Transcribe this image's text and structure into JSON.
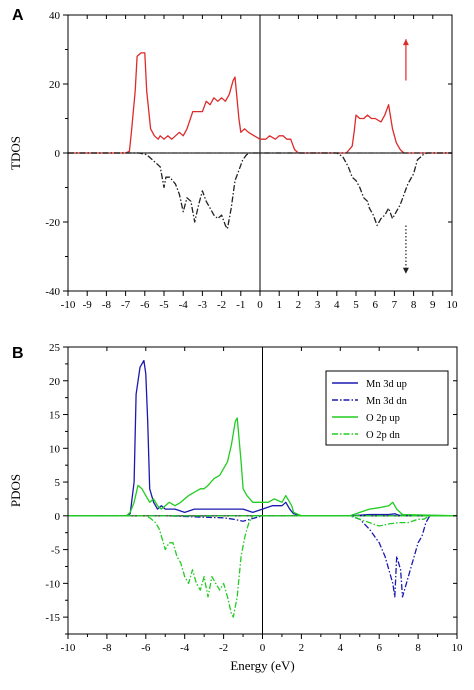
{
  "chart_data": [
    {
      "panel": "A",
      "type": "line",
      "xlabel": "",
      "ylabel": "TDOS",
      "xlim": [
        -10,
        10
      ],
      "ylim": [
        -40,
        40
      ],
      "xticks": [
        -10,
        -9,
        -8,
        -7,
        -6,
        -5,
        -4,
        -3,
        -2,
        -1,
        0,
        1,
        2,
        3,
        4,
        5,
        6,
        7,
        8,
        9,
        10
      ],
      "yticks": [
        -40,
        -20,
        0,
        20,
        40
      ],
      "zero_lines": true,
      "legend": null,
      "annotations": [
        {
          "type": "arrow",
          "direction": "up",
          "color": "#dd2a2a",
          "style": "solid",
          "x": 7.6,
          "y_from": 21,
          "y_to": 33
        },
        {
          "type": "arrow",
          "direction": "down",
          "color": "#222222",
          "style": "dotted",
          "x": 7.6,
          "y_from": -21,
          "y_to": -35
        }
      ],
      "series": [
        {
          "color": "#dd2a2a",
          "style": "solid",
          "x": [
            -10,
            -7,
            -6.8,
            -6.7,
            -6.5,
            -6.4,
            -6.2,
            -6.0,
            -5.9,
            -5.7,
            -5.5,
            -5.3,
            -5.2,
            -5.0,
            -4.8,
            -4.6,
            -4.4,
            -4.2,
            -4.0,
            -3.8,
            -3.5,
            -3.2,
            -3.0,
            -2.8,
            -2.6,
            -2.4,
            -2.2,
            -2.0,
            -1.8,
            -1.6,
            -1.4,
            -1.3,
            -1.1,
            -1.0,
            -0.8,
            -0.6,
            -0.3,
            0.0,
            0.3,
            0.5,
            0.8,
            1.0,
            1.2,
            1.4,
            1.6,
            1.8,
            2.0,
            2.5,
            3.0,
            3.5,
            4.0,
            4.5,
            4.8,
            4.9,
            5.0,
            5.2,
            5.4,
            5.6,
            5.8,
            6.0,
            6.3,
            6.5,
            6.7,
            6.9,
            7.1,
            7.3,
            7.5,
            8.0,
            10
          ],
          "y": [
            0,
            0,
            0.5,
            6,
            18,
            28,
            29,
            29,
            18,
            7,
            5,
            4,
            5,
            4,
            5,
            4,
            5,
            6,
            5,
            7,
            12,
            12,
            12,
            15,
            14,
            16,
            15,
            16,
            15,
            17,
            21,
            22,
            10,
            6,
            7,
            6,
            5,
            4,
            4,
            5,
            4,
            5,
            5,
            4,
            4,
            1,
            0,
            0,
            0,
            0,
            0,
            0,
            2,
            6,
            11,
            10,
            10,
            11,
            10,
            10,
            9,
            11,
            14,
            7,
            3,
            1,
            0,
            0,
            0
          ]
        },
        {
          "color": "#222222",
          "style": "dashdot",
          "x": [
            -10,
            -6.3,
            -5.9,
            -5.6,
            -5.4,
            -5.2,
            -5.0,
            -4.9,
            -4.7,
            -4.4,
            -4.2,
            -4.0,
            -3.8,
            -3.6,
            -3.4,
            -3.2,
            -3.0,
            -2.8,
            -2.6,
            -2.4,
            -2.2,
            -2.0,
            -1.8,
            -1.7,
            -1.5,
            -1.3,
            -1.1,
            -0.9,
            -0.7,
            -0.5,
            10
          ],
          "y": [
            0,
            0,
            -0.5,
            -2,
            -3,
            -4,
            -10,
            -7,
            -7,
            -9,
            -12,
            -17,
            -13,
            -14,
            -20,
            -15,
            -11,
            -14,
            -16,
            -18,
            -19,
            -18,
            -21,
            -22,
            -16,
            -8,
            -5,
            -2,
            -0.5,
            0,
            0
          ]
        },
        {
          "color": "#222222",
          "style": "dashdot",
          "x": [
            -10,
            4.0,
            4.3,
            4.6,
            4.8,
            5.0,
            5.2,
            5.4,
            5.6,
            5.7,
            5.9,
            6.1,
            6.3,
            6.5,
            6.7,
            6.9,
            7.1,
            7.3,
            7.5,
            7.7,
            8.0,
            8.2,
            8.5,
            8.7,
            10
          ],
          "y": [
            0,
            0,
            -1,
            -4,
            -7,
            -8,
            -10,
            -13,
            -14,
            -16,
            -18,
            -21,
            -19,
            -18,
            -16,
            -19,
            -17,
            -15,
            -12,
            -9,
            -6,
            -2,
            -0.5,
            0,
            0
          ]
        }
      ]
    },
    {
      "panel": "B",
      "type": "line",
      "xlabel": "Energy (eV)",
      "ylabel": "PDOS",
      "xlim": [
        -10,
        10
      ],
      "ylim": [
        -17.5,
        25
      ],
      "xticks": [
        -10,
        -8,
        -6,
        -4,
        -2,
        0,
        2,
        4,
        6,
        8,
        10
      ],
      "yticks": [
        -15,
        -10,
        -5,
        0,
        5,
        10,
        15,
        20,
        25
      ],
      "zero_lines": true,
      "legend": "top-right",
      "series": [
        {
          "name": "Mn 3d up",
          "color": "#1a1ab0",
          "style": "solid",
          "x": [
            -10,
            -7.0,
            -6.8,
            -6.6,
            -6.5,
            -6.3,
            -6.1,
            -6.0,
            -5.9,
            -5.8,
            -5.6,
            -5.4,
            -5.2,
            -5.0,
            -4.5,
            -4.0,
            -3.5,
            -3.0,
            -2.5,
            -2.0,
            -1.5,
            -1.0,
            -0.5,
            0.0,
            0.5,
            1.0,
            1.2,
            1.4,
            1.6,
            2.0,
            4.5,
            5.0,
            5.5,
            6.0,
            6.5,
            6.8,
            7.0,
            10
          ],
          "y": [
            0,
            0,
            0.3,
            5,
            18,
            22,
            23,
            21,
            14,
            4,
            2,
            1,
            1.5,
            1,
            1,
            0.5,
            1,
            1,
            1,
            1,
            1,
            1,
            0.5,
            1,
            1.5,
            1.5,
            2,
            1,
            0.3,
            0,
            0,
            0.1,
            0.2,
            0.2,
            0.2,
            0.3,
            0.1,
            0
          ]
        },
        {
          "name": "Mn 3d dn",
          "color": "#1a1ab0",
          "style": "dashdot",
          "x": [
            -10,
            -5.0,
            -4.0,
            -3.0,
            -2.0,
            -1.5,
            -1.0,
            -0.5,
            0.0,
            10
          ],
          "y": [
            0,
            0,
            -0.1,
            -0.2,
            -0.3,
            -0.5,
            -0.8,
            -0.4,
            0,
            0
          ]
        },
        {
          "name": "Mn 3d dn",
          "color": "#1a1ab0",
          "style": "dashdot",
          "x": [
            -10,
            4.5,
            5.0,
            5.5,
            6.0,
            6.3,
            6.5,
            6.7,
            6.8,
            6.9,
            7.1,
            7.2,
            7.4,
            7.6,
            7.8,
            8.0,
            8.2,
            8.4,
            8.6,
            10
          ],
          "y": [
            0,
            0,
            -0.5,
            -2,
            -4,
            -6,
            -8,
            -10,
            -12,
            -6,
            -8,
            -12,
            -10,
            -8,
            -6,
            -4,
            -3,
            -1,
            0,
            0
          ]
        },
        {
          "name": "O 2p up",
          "color": "#22cc22",
          "style": "solid",
          "x": [
            -10,
            -7.0,
            -6.8,
            -6.6,
            -6.4,
            -6.2,
            -6.0,
            -5.8,
            -5.6,
            -5.4,
            -5.2,
            -5.0,
            -4.8,
            -4.5,
            -4.2,
            -4.0,
            -3.8,
            -3.5,
            -3.2,
            -3.0,
            -2.8,
            -2.5,
            -2.2,
            -2.0,
            -1.8,
            -1.6,
            -1.4,
            -1.3,
            -1.1,
            -1.0,
            -0.8,
            -0.5,
            -0.2,
            0.0,
            0.3,
            0.6,
            1.0,
            1.2,
            1.5,
            1.6,
            2.0,
            4.5,
            5.0,
            5.5,
            6.0,
            6.5,
            6.7,
            6.9,
            7.2,
            10
          ],
          "y": [
            0,
            0,
            0.5,
            2,
            4.5,
            4,
            3,
            2,
            2.5,
            1.5,
            1,
            1.5,
            2,
            1.5,
            2,
            2.5,
            3,
            3.5,
            4,
            4,
            4.5,
            5.5,
            6,
            7,
            8,
            10.5,
            14,
            14.5,
            8,
            4,
            3,
            2,
            2,
            2,
            2,
            2.5,
            2,
            3,
            1.5,
            0.5,
            0,
            0,
            0.5,
            1,
            1.2,
            1.5,
            2,
            1,
            0.2,
            0
          ]
        },
        {
          "name": "O 2p dn",
          "color": "#22cc22",
          "style": "dashdot",
          "x": [
            -10,
            -6.0,
            -5.8,
            -5.5,
            -5.3,
            -5.1,
            -5.0,
            -4.8,
            -4.6,
            -4.4,
            -4.2,
            -4.0,
            -3.8,
            -3.6,
            -3.4,
            -3.2,
            -3.0,
            -2.8,
            -2.6,
            -2.4,
            -2.2,
            -2.0,
            -1.8,
            -1.6,
            -1.5,
            -1.3,
            -1.1,
            -0.9,
            -0.7,
            -0.5,
            10
          ],
          "y": [
            0,
            0,
            -0.3,
            -1,
            -2,
            -4,
            -5,
            -4,
            -4,
            -6,
            -7,
            -9,
            -10,
            -8,
            -10,
            -11,
            -9,
            -12,
            -9,
            -10,
            -11,
            -10,
            -12,
            -14.5,
            -15,
            -12,
            -6,
            -3,
            -1,
            0,
            0
          ]
        },
        {
          "name": "O 2p dn",
          "color": "#22cc22",
          "style": "dashdot",
          "x": [
            -10,
            4.5,
            5.0,
            5.5,
            6.0,
            6.5,
            7.0,
            7.5,
            8.0,
            8.3,
            8.6,
            10
          ],
          "y": [
            0,
            0,
            -0.5,
            -1,
            -1.5,
            -1.2,
            -1,
            -1,
            -0.5,
            -0.5,
            0,
            0
          ]
        }
      ],
      "legend_entries": [
        {
          "label": "Mn 3d up",
          "color": "#1a1ab0",
          "style": "solid"
        },
        {
          "label": "Mn 3d dn",
          "color": "#1a1ab0",
          "style": "dashdot"
        },
        {
          "label": "O   2p up",
          "color": "#22cc22",
          "style": "solid"
        },
        {
          "label": "O   2p dn",
          "color": "#22cc22",
          "style": "dashdot"
        }
      ]
    }
  ]
}
